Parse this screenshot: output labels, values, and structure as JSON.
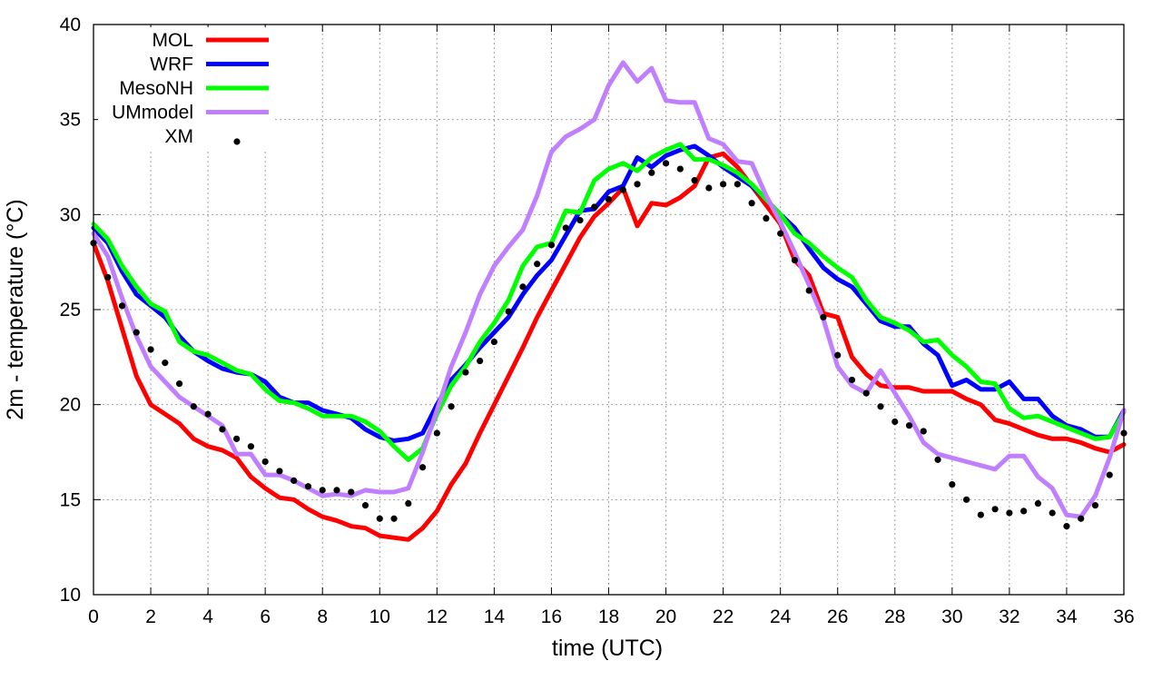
{
  "chart_data": {
    "type": "line",
    "xlabel": "time (UTC)",
    "ylabel": "2m - temperature (°C)",
    "xlim": [
      0,
      36
    ],
    "ylim": [
      10,
      40
    ],
    "xticks": [
      0,
      2,
      4,
      6,
      8,
      10,
      12,
      14,
      16,
      18,
      20,
      22,
      24,
      26,
      28,
      30,
      32,
      34,
      36
    ],
    "yticks": [
      10,
      15,
      20,
      25,
      30,
      35,
      40
    ],
    "grid": true,
    "legend_position": "top-left",
    "x": [
      0,
      0.5,
      1,
      1.5,
      2,
      2.5,
      3,
      3.5,
      4,
      4.5,
      5,
      5.5,
      6,
      6.5,
      7,
      7.5,
      8,
      8.5,
      9,
      9.5,
      10,
      10.5,
      11,
      11.5,
      12,
      12.5,
      13,
      13.5,
      14,
      14.5,
      15,
      15.5,
      16,
      16.5,
      17,
      17.5,
      18,
      18.5,
      19,
      19.5,
      20,
      20.5,
      21,
      21.5,
      22,
      22.5,
      23,
      23.5,
      24,
      24.5,
      25,
      25.5,
      26,
      26.5,
      27,
      27.5,
      28,
      28.5,
      29,
      29.5,
      30,
      30.5,
      31,
      31.5,
      32,
      32.5,
      33,
      33.5,
      34,
      34.5,
      35,
      35.5,
      36
    ],
    "series": [
      {
        "name": "MOL",
        "color": "#ff0000",
        "style": "line",
        "values": [
          28.5,
          26.5,
          24.0,
          21.5,
          20.0,
          19.5,
          19.0,
          18.2,
          17.8,
          17.6,
          17.2,
          16.2,
          15.6,
          15.1,
          15.0,
          14.5,
          14.1,
          13.9,
          13.6,
          13.5,
          13.1,
          13.0,
          12.9,
          13.5,
          14.4,
          15.8,
          16.9,
          18.5,
          20.0,
          21.5,
          23.0,
          24.6,
          26.0,
          27.4,
          28.8,
          29.9,
          30.6,
          31.4,
          29.4,
          30.6,
          30.5,
          30.9,
          31.5,
          33.0,
          33.2,
          32.5,
          31.5,
          30.5,
          29.5,
          27.6,
          26.8,
          24.8,
          24.6,
          22.5,
          21.6,
          21.0,
          20.9,
          20.9,
          20.7,
          20.7,
          20.7,
          20.3,
          20.0,
          19.2,
          19.0,
          18.7,
          18.4,
          18.2,
          18.2,
          18.0,
          17.7,
          17.5,
          17.9
        ]
      },
      {
        "name": "WRF",
        "color": "#0000ff",
        "style": "line",
        "values": [
          29.3,
          28.5,
          27.0,
          25.8,
          25.2,
          24.6,
          23.6,
          22.8,
          22.3,
          21.9,
          21.7,
          21.6,
          21.2,
          20.4,
          20.1,
          20.1,
          19.7,
          19.5,
          19.3,
          18.7,
          18.3,
          18.1,
          18.2,
          18.5,
          20.0,
          21.3,
          22.1,
          23.0,
          23.8,
          24.6,
          25.8,
          26.8,
          27.6,
          28.9,
          30.2,
          30.3,
          31.2,
          31.5,
          33.0,
          32.5,
          33.1,
          33.4,
          33.6,
          33.1,
          32.5,
          32.0,
          31.5,
          30.8,
          30.0,
          29.3,
          28.2,
          27.2,
          26.6,
          26.2,
          25.3,
          24.4,
          24.1,
          24.1,
          23.2,
          22.6,
          21.0,
          21.3,
          20.8,
          20.8,
          21.2,
          20.3,
          20.3,
          19.4,
          18.9,
          18.7,
          18.3,
          18.3,
          19.7
        ]
      },
      {
        "name": "MesoNH",
        "color": "#00ff00",
        "style": "line",
        "values": [
          29.5,
          28.7,
          27.3,
          26.2,
          25.3,
          24.9,
          23.3,
          22.8,
          22.6,
          22.2,
          21.8,
          21.6,
          20.8,
          20.2,
          20.1,
          19.8,
          19.4,
          19.4,
          19.4,
          19.1,
          18.6,
          17.8,
          17.1,
          17.7,
          19.5,
          21.0,
          22.0,
          23.3,
          24.3,
          25.5,
          27.3,
          28.3,
          28.5,
          30.2,
          30.1,
          31.8,
          32.4,
          32.7,
          32.3,
          33.0,
          33.4,
          33.7,
          32.9,
          32.9,
          32.6,
          32.2,
          31.6,
          30.8,
          30.0,
          29.0,
          28.5,
          27.8,
          27.2,
          26.7,
          25.5,
          24.6,
          24.3,
          23.9,
          23.3,
          23.4,
          22.6,
          22.0,
          21.2,
          21.1,
          19.8,
          19.3,
          19.4,
          19.1,
          18.8,
          18.5,
          18.2,
          18.3,
          19.6
        ]
      },
      {
        "name": "UMmodel",
        "color": "#bf7fff",
        "style": "line",
        "values": [
          29.0,
          27.8,
          25.6,
          23.6,
          22.0,
          21.2,
          20.4,
          19.9,
          19.4,
          18.9,
          17.4,
          17.4,
          16.3,
          16.3,
          16.0,
          15.6,
          15.2,
          15.3,
          15.2,
          15.5,
          15.4,
          15.4,
          15.6,
          17.5,
          19.7,
          22.0,
          23.8,
          25.8,
          27.3,
          28.3,
          29.2,
          31.0,
          33.3,
          34.1,
          34.5,
          35.0,
          36.8,
          38.0,
          37.0,
          37.7,
          36.0,
          35.9,
          35.9,
          34.0,
          33.7,
          32.8,
          32.7,
          31.0,
          29.6,
          28.0,
          26.3,
          24.5,
          22.0,
          21.0,
          20.6,
          21.8,
          20.6,
          19.4,
          18.0,
          17.4,
          17.2,
          17.0,
          16.8,
          16.6,
          17.3,
          17.3,
          16.2,
          15.6,
          14.2,
          14.1,
          15.2,
          17.2,
          19.7
        ]
      },
      {
        "name": "XM",
        "color": "#000000",
        "style": "points",
        "values": [
          28.5,
          26.7,
          25.2,
          23.8,
          22.9,
          22.2,
          21.1,
          19.9,
          19.5,
          18.7,
          18.2,
          17.8,
          17.0,
          16.5,
          16.0,
          15.7,
          15.5,
          15.5,
          15.4,
          14.7,
          14.0,
          14.0,
          14.8,
          16.7,
          18.5,
          19.9,
          21.7,
          22.3,
          23.3,
          24.9,
          26.2,
          27.4,
          28.4,
          29.3,
          29.7,
          30.4,
          30.8,
          31.3,
          31.6,
          32.2,
          32.7,
          32.4,
          31.8,
          31.4,
          31.6,
          31.6,
          30.6,
          29.8,
          29.0,
          27.6,
          26.0,
          24.6,
          22.6,
          21.3,
          20.6,
          19.9,
          19.1,
          18.9,
          18.6,
          17.1,
          15.8,
          15.0,
          14.2,
          14.5,
          14.3,
          14.4,
          14.8,
          14.3,
          13.6,
          14.0,
          14.7,
          16.3,
          18.5
        ]
      }
    ]
  }
}
